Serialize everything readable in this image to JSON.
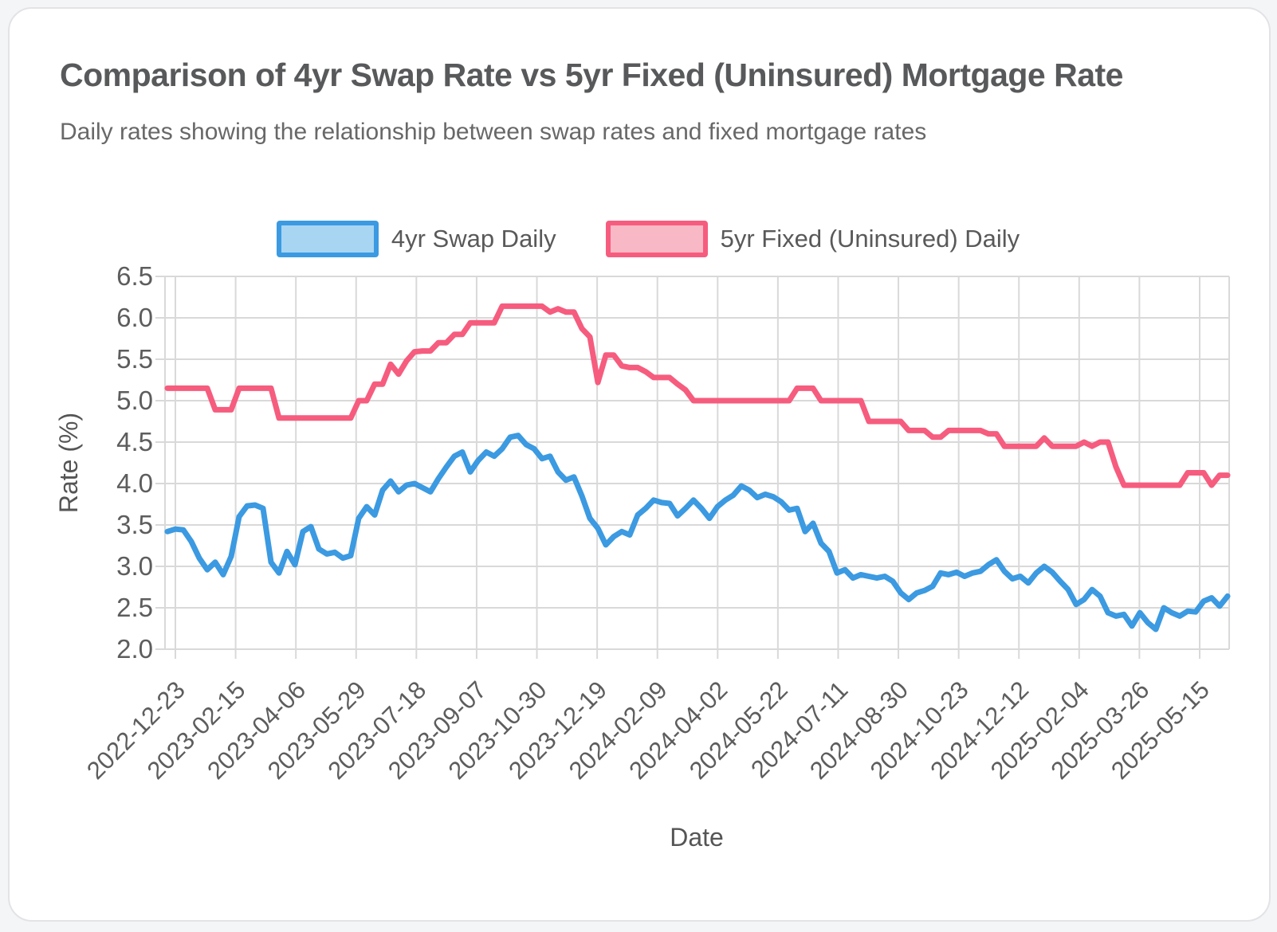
{
  "header": {
    "title": "Comparison of 4yr Swap Rate vs 5yr Fixed (Uninsured) Mortgage Rate",
    "subtitle": "Daily rates showing the relationship between swap rates and fixed mortgage rates"
  },
  "legend": {
    "items": [
      {
        "label": "4yr Swap Daily"
      },
      {
        "label": "5yr Fixed (Uninsured) Daily"
      }
    ]
  },
  "chart_data": {
    "type": "line",
    "title": "Comparison of 4yr Swap Rate vs 5yr Fixed (Uninsured) Mortgage Rate",
    "subtitle": "Daily rates showing the relationship between swap rates and fixed mortgage rates",
    "xlabel": "Date",
    "ylabel": "Rate (%)",
    "ylim": [
      2.0,
      6.5
    ],
    "y_ticks": [
      6.5,
      6.0,
      5.5,
      5.0,
      4.5,
      4.0,
      3.5,
      3.0,
      2.5,
      2.0
    ],
    "x_tick_labels": [
      "2022-12-23",
      "2023-02-15",
      "2023-04-06",
      "2023-05-29",
      "2023-07-18",
      "2023-09-07",
      "2023-10-30",
      "2023-12-19",
      "2024-02-09",
      "2024-04-02",
      "2024-05-22",
      "2024-07-11",
      "2024-08-30",
      "2024-10-23",
      "2024-12-12",
      "2025-02-04",
      "2025-03-26",
      "2025-05-15"
    ],
    "grid": true,
    "legend_position": "top",
    "colors": {
      "grid": "#d9d9d9",
      "tick_text": "#5d5d5d",
      "axis_title_text": "#555555",
      "title_text": "#58595b",
      "subtitle_text": "#686868",
      "card_border": "#e3e3e7",
      "card_bg": "#ffffff",
      "page_bg": "#f4f5f7"
    },
    "series": [
      {
        "name": "4yr Swap Daily",
        "key": "swap",
        "color": "#3b9ae1",
        "fill": "#a8d5f2",
        "values": [
          3.42,
          3.45,
          3.44,
          3.3,
          3.1,
          2.96,
          3.05,
          2.9,
          3.12,
          3.6,
          3.73,
          3.74,
          3.7,
          3.05,
          2.92,
          3.18,
          3.02,
          3.42,
          3.48,
          3.21,
          3.15,
          3.17,
          3.1,
          3.13,
          3.58,
          3.72,
          3.62,
          3.92,
          4.03,
          3.9,
          3.98,
          4.0,
          3.95,
          3.9,
          4.06,
          4.2,
          4.33,
          4.38,
          4.14,
          4.28,
          4.38,
          4.33,
          4.42,
          4.56,
          4.58,
          4.47,
          4.42,
          4.3,
          4.33,
          4.14,
          4.04,
          4.08,
          3.85,
          3.58,
          3.46,
          3.26,
          3.36,
          3.42,
          3.38,
          3.62,
          3.7,
          3.8,
          3.77,
          3.76,
          3.61,
          3.7,
          3.8,
          3.7,
          3.58,
          3.72,
          3.8,
          3.86,
          3.97,
          3.92,
          3.83,
          3.87,
          3.84,
          3.78,
          3.68,
          3.7,
          3.42,
          3.52,
          3.28,
          3.18,
          2.92,
          2.96,
          2.86,
          2.9,
          2.88,
          2.86,
          2.88,
          2.82,
          2.68,
          2.6,
          2.68,
          2.71,
          2.76,
          2.92,
          2.9,
          2.93,
          2.88,
          2.92,
          2.94,
          3.02,
          3.08,
          2.94,
          2.85,
          2.88,
          2.8,
          2.92,
          3.0,
          2.93,
          2.82,
          2.72,
          2.54,
          2.6,
          2.72,
          2.64,
          2.44,
          2.4,
          2.42,
          2.28,
          2.44,
          2.32,
          2.24,
          2.5,
          2.44,
          2.4,
          2.46,
          2.45,
          2.58,
          2.62,
          2.52,
          2.64
        ]
      },
      {
        "name": "5yr Fixed (Uninsured) Daily",
        "key": "fixed",
        "color": "#f65c7e",
        "fill": "#f9b8c6",
        "values": [
          5.15,
          5.15,
          5.15,
          5.15,
          5.15,
          5.15,
          4.89,
          4.89,
          4.89,
          5.15,
          5.15,
          5.15,
          5.15,
          5.15,
          4.79,
          4.79,
          4.79,
          4.79,
          4.79,
          4.79,
          4.79,
          4.79,
          4.79,
          4.79,
          5.0,
          5.0,
          5.2,
          5.2,
          5.44,
          5.32,
          5.48,
          5.59,
          5.6,
          5.6,
          5.7,
          5.7,
          5.8,
          5.8,
          5.94,
          5.94,
          5.94,
          5.94,
          6.14,
          6.14,
          6.14,
          6.14,
          6.14,
          6.14,
          6.07,
          6.11,
          6.07,
          6.07,
          5.87,
          5.77,
          5.22,
          5.55,
          5.55,
          5.42,
          5.4,
          5.4,
          5.35,
          5.28,
          5.28,
          5.28,
          5.2,
          5.13,
          5.0,
          5.0,
          5.0,
          5.0,
          5.0,
          5.0,
          5.0,
          5.0,
          5.0,
          5.0,
          5.0,
          5.0,
          5.0,
          5.15,
          5.15,
          5.15,
          5.0,
          5.0,
          5.0,
          5.0,
          5.0,
          5.0,
          4.75,
          4.75,
          4.75,
          4.75,
          4.75,
          4.64,
          4.64,
          4.64,
          4.56,
          4.56,
          4.64,
          4.64,
          4.64,
          4.64,
          4.64,
          4.6,
          4.6,
          4.45,
          4.45,
          4.45,
          4.45,
          4.45,
          4.55,
          4.45,
          4.45,
          4.45,
          4.45,
          4.5,
          4.45,
          4.5,
          4.5,
          4.2,
          3.98,
          3.98,
          3.98,
          3.98,
          3.98,
          3.98,
          3.98,
          3.98,
          4.13,
          4.13,
          4.13,
          3.98,
          4.1,
          4.1
        ]
      }
    ]
  }
}
